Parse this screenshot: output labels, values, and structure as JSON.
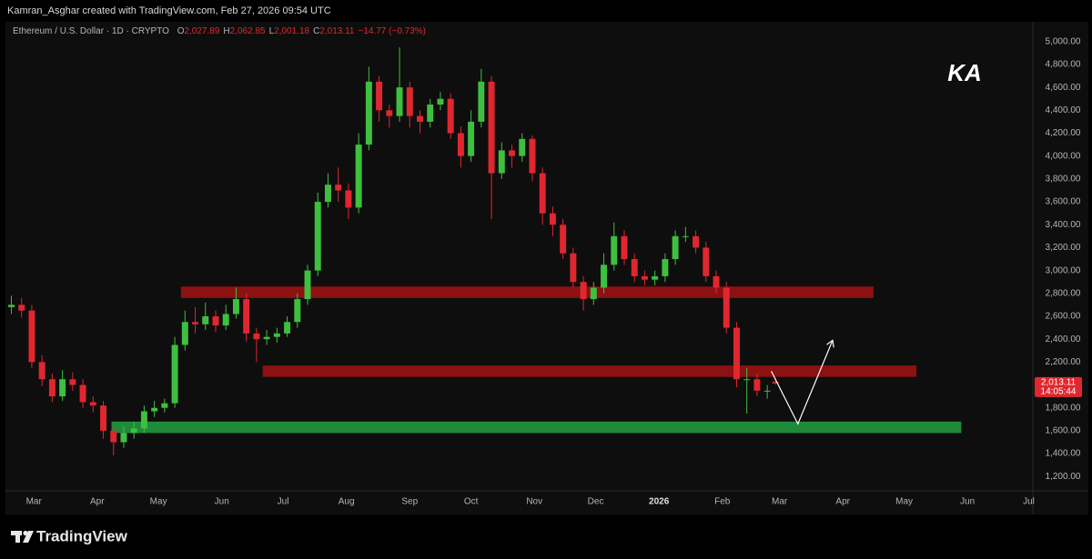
{
  "header": {
    "text": "Kamran_Asghar created with TradingView.com, Feb 27, 2026 09:54 UTC"
  },
  "chart_data": {
    "type": "candlestick",
    "symbol": "Ethereum / U.S. Dollar · 1D · CRYPTO",
    "ohlc_legend": [
      {
        "key": "O",
        "value": "2,027.89"
      },
      {
        "key": "H",
        "value": "2,062.85"
      },
      {
        "key": "L",
        "value": "2,001.18"
      },
      {
        "key": "C",
        "value": "2,013.11"
      }
    ],
    "change": "−14.77 (−0.73%)",
    "last_price_label": "2,013.11",
    "countdown": "14:05:44",
    "logo": "KA",
    "up_color": "#3fbf3f",
    "down_color": "#e0272f",
    "x": [
      0,
      5,
      10,
      15,
      20,
      25,
      30,
      35,
      40,
      45,
      50,
      55,
      60,
      65,
      70,
      75,
      80,
      85,
      90,
      95,
      100,
      105,
      110,
      115,
      120,
      125,
      130,
      135,
      140,
      145,
      150,
      155,
      160,
      165,
      170,
      175,
      180,
      185,
      190,
      195,
      200,
      205,
      210,
      215,
      220,
      225,
      230,
      235,
      240,
      245,
      250,
      255,
      260,
      265,
      270,
      275,
      280,
      285,
      290,
      295,
      300,
      305,
      310,
      315,
      320,
      325,
      330,
      335,
      340,
      345,
      350,
      355,
      360,
      365,
      370,
      374
    ],
    "open": [
      2680,
      2700,
      2650,
      2200,
      2050,
      1900,
      2050,
      2000,
      1850,
      1820,
      1600,
      1500,
      1580,
      1620,
      1770,
      1800,
      1840,
      2350,
      2550,
      2530,
      2600,
      2520,
      2620,
      2750,
      2450,
      2400,
      2420,
      2450,
      2550,
      2750,
      3000,
      3600,
      3750,
      3700,
      3550,
      4100,
      4650,
      4400,
      4350,
      4600,
      4350,
      4300,
      4450,
      4500,
      4200,
      4000,
      4300,
      4650,
      3850,
      4050,
      4000,
      4150,
      3850,
      3500,
      3400,
      3150,
      2900,
      2750,
      2850,
      3050,
      3300,
      3100,
      2950,
      2920,
      2950,
      3100,
      3300,
      3300,
      3200,
      2950,
      2850,
      2500,
      2050,
      2050,
      1950,
      2027.89
    ],
    "high": [
      2780,
      2760,
      2700,
      2260,
      2100,
      2130,
      2110,
      2050,
      1900,
      1860,
      1650,
      1640,
      1680,
      1820,
      1860,
      1880,
      2420,
      2650,
      2680,
      2720,
      2650,
      2700,
      2850,
      2800,
      2500,
      2480,
      2500,
      2600,
      2800,
      3050,
      3680,
      3850,
      3900,
      3760,
      4200,
      4780,
      4700,
      4450,
      4950,
      4650,
      4400,
      4500,
      4560,
      4550,
      4260,
      4400,
      4760,
      4700,
      4120,
      4100,
      4200,
      4180,
      3900,
      3560,
      3450,
      3200,
      2950,
      2900,
      3150,
      3420,
      3350,
      3150,
      3000,
      3000,
      3150,
      3350,
      3380,
      3350,
      3250,
      3000,
      2900,
      2550,
      2150,
      2100,
      2000,
      2062.85
    ],
    "low": [
      2620,
      2590,
      2150,
      1990,
      1850,
      1860,
      1950,
      1800,
      1760,
      1530,
      1385,
      1450,
      1530,
      1580,
      1720,
      1760,
      1800,
      2300,
      2450,
      2480,
      2460,
      2480,
      2580,
      2380,
      2200,
      2350,
      2370,
      2420,
      2500,
      2700,
      2950,
      3550,
      3600,
      3450,
      3500,
      4050,
      4300,
      4250,
      4300,
      4250,
      4200,
      4250,
      4400,
      4150,
      3900,
      3950,
      4250,
      3450,
      3800,
      3900,
      3950,
      3780,
      3400,
      3300,
      3100,
      2850,
      2650,
      2700,
      2800,
      3000,
      3050,
      2900,
      2870,
      2870,
      2900,
      3050,
      3250,
      3150,
      2900,
      2800,
      2450,
      1980,
      1750,
      1900,
      1880,
      2001.18
    ],
    "close": [
      2700,
      2650,
      2200,
      2050,
      1900,
      2050,
      2000,
      1850,
      1820,
      1600,
      1500,
      1580,
      1620,
      1770,
      1800,
      1840,
      2350,
      2550,
      2530,
      2600,
      2520,
      2620,
      2750,
      2450,
      2400,
      2420,
      2450,
      2550,
      2750,
      3000,
      3600,
      3750,
      3700,
      3550,
      4100,
      4650,
      4400,
      4350,
      4600,
      4350,
      4300,
      4450,
      4500,
      4200,
      4000,
      4300,
      4650,
      3850,
      4050,
      4000,
      4150,
      3850,
      3500,
      3400,
      3150,
      2900,
      2750,
      2850,
      3050,
      3300,
      3100,
      2950,
      2920,
      2950,
      3100,
      3300,
      3300,
      3200,
      2950,
      2850,
      2500,
      2050,
      2050,
      1950,
      1950,
      2013.11
    ],
    "zones": [
      {
        "from": 83,
        "to": 422,
        "low": 2760,
        "high": 2860,
        "color": "#8c1111"
      },
      {
        "from": 123,
        "to": 443,
        "low": 2070,
        "high": 2170,
        "color": "#8c1111"
      },
      {
        "from": 49,
        "to": 465,
        "low": 1580,
        "high": 1680,
        "color": "#1e8a3a"
      }
    ],
    "projection": {
      "x": [
        372,
        385,
        402
      ],
      "y": [
        2120,
        1660,
        2390
      ],
      "color": "#ffffff"
    },
    "xlim": [
      -2,
      500
    ],
    "ylim": [
      1075,
      5165
    ],
    "xticks": [
      {
        "value": 11,
        "label": "Mar"
      },
      {
        "value": 42,
        "label": "Apr"
      },
      {
        "value": 72,
        "label": "May"
      },
      {
        "value": 103,
        "label": "Jun"
      },
      {
        "value": 133,
        "label": "Jul"
      },
      {
        "value": 164,
        "label": "Aug"
      },
      {
        "value": 195,
        "label": "Sep"
      },
      {
        "value": 225,
        "label": "Oct"
      },
      {
        "value": 256,
        "label": "Nov"
      },
      {
        "value": 286,
        "label": "Dec"
      },
      {
        "value": 317,
        "label": "2026"
      },
      {
        "value": 348,
        "label": "Feb"
      },
      {
        "value": 376,
        "label": "Mar"
      },
      {
        "value": 407,
        "label": "Apr"
      },
      {
        "value": 437,
        "label": "May"
      },
      {
        "value": 468,
        "label": "Jun"
      },
      {
        "value": 498,
        "label": "Jul"
      }
    ],
    "yticks": [
      {
        "value": 1200,
        "label": "1,200.00"
      },
      {
        "value": 1400,
        "label": "1,400.00"
      },
      {
        "value": 1600,
        "label": "1,600.00"
      },
      {
        "value": 1800,
        "label": "1,800.00"
      },
      {
        "value": 2000,
        "label": "2,000.00"
      },
      {
        "value": 2200,
        "label": "2,200.00"
      },
      {
        "value": 2400,
        "label": "2,400.00"
      },
      {
        "value": 2600,
        "label": "2,600.00"
      },
      {
        "value": 2800,
        "label": "2,800.00"
      },
      {
        "value": 3000,
        "label": "3,000.00"
      },
      {
        "value": 3200,
        "label": "3,200.00"
      },
      {
        "value": 3400,
        "label": "3,400.00"
      },
      {
        "value": 3600,
        "label": "3,600.00"
      },
      {
        "value": 3800,
        "label": "3,800.00"
      },
      {
        "value": 4000,
        "label": "4,000.00"
      },
      {
        "value": 4200,
        "label": "4,200.00"
      },
      {
        "value": 4400,
        "label": "4,400.00"
      },
      {
        "value": 4600,
        "label": "4,600.00"
      },
      {
        "value": 4800,
        "label": "4,800.00"
      },
      {
        "value": 5000,
        "label": "5,000.00"
      }
    ],
    "grid": false
  },
  "footer": {
    "brand": "TradingView"
  }
}
